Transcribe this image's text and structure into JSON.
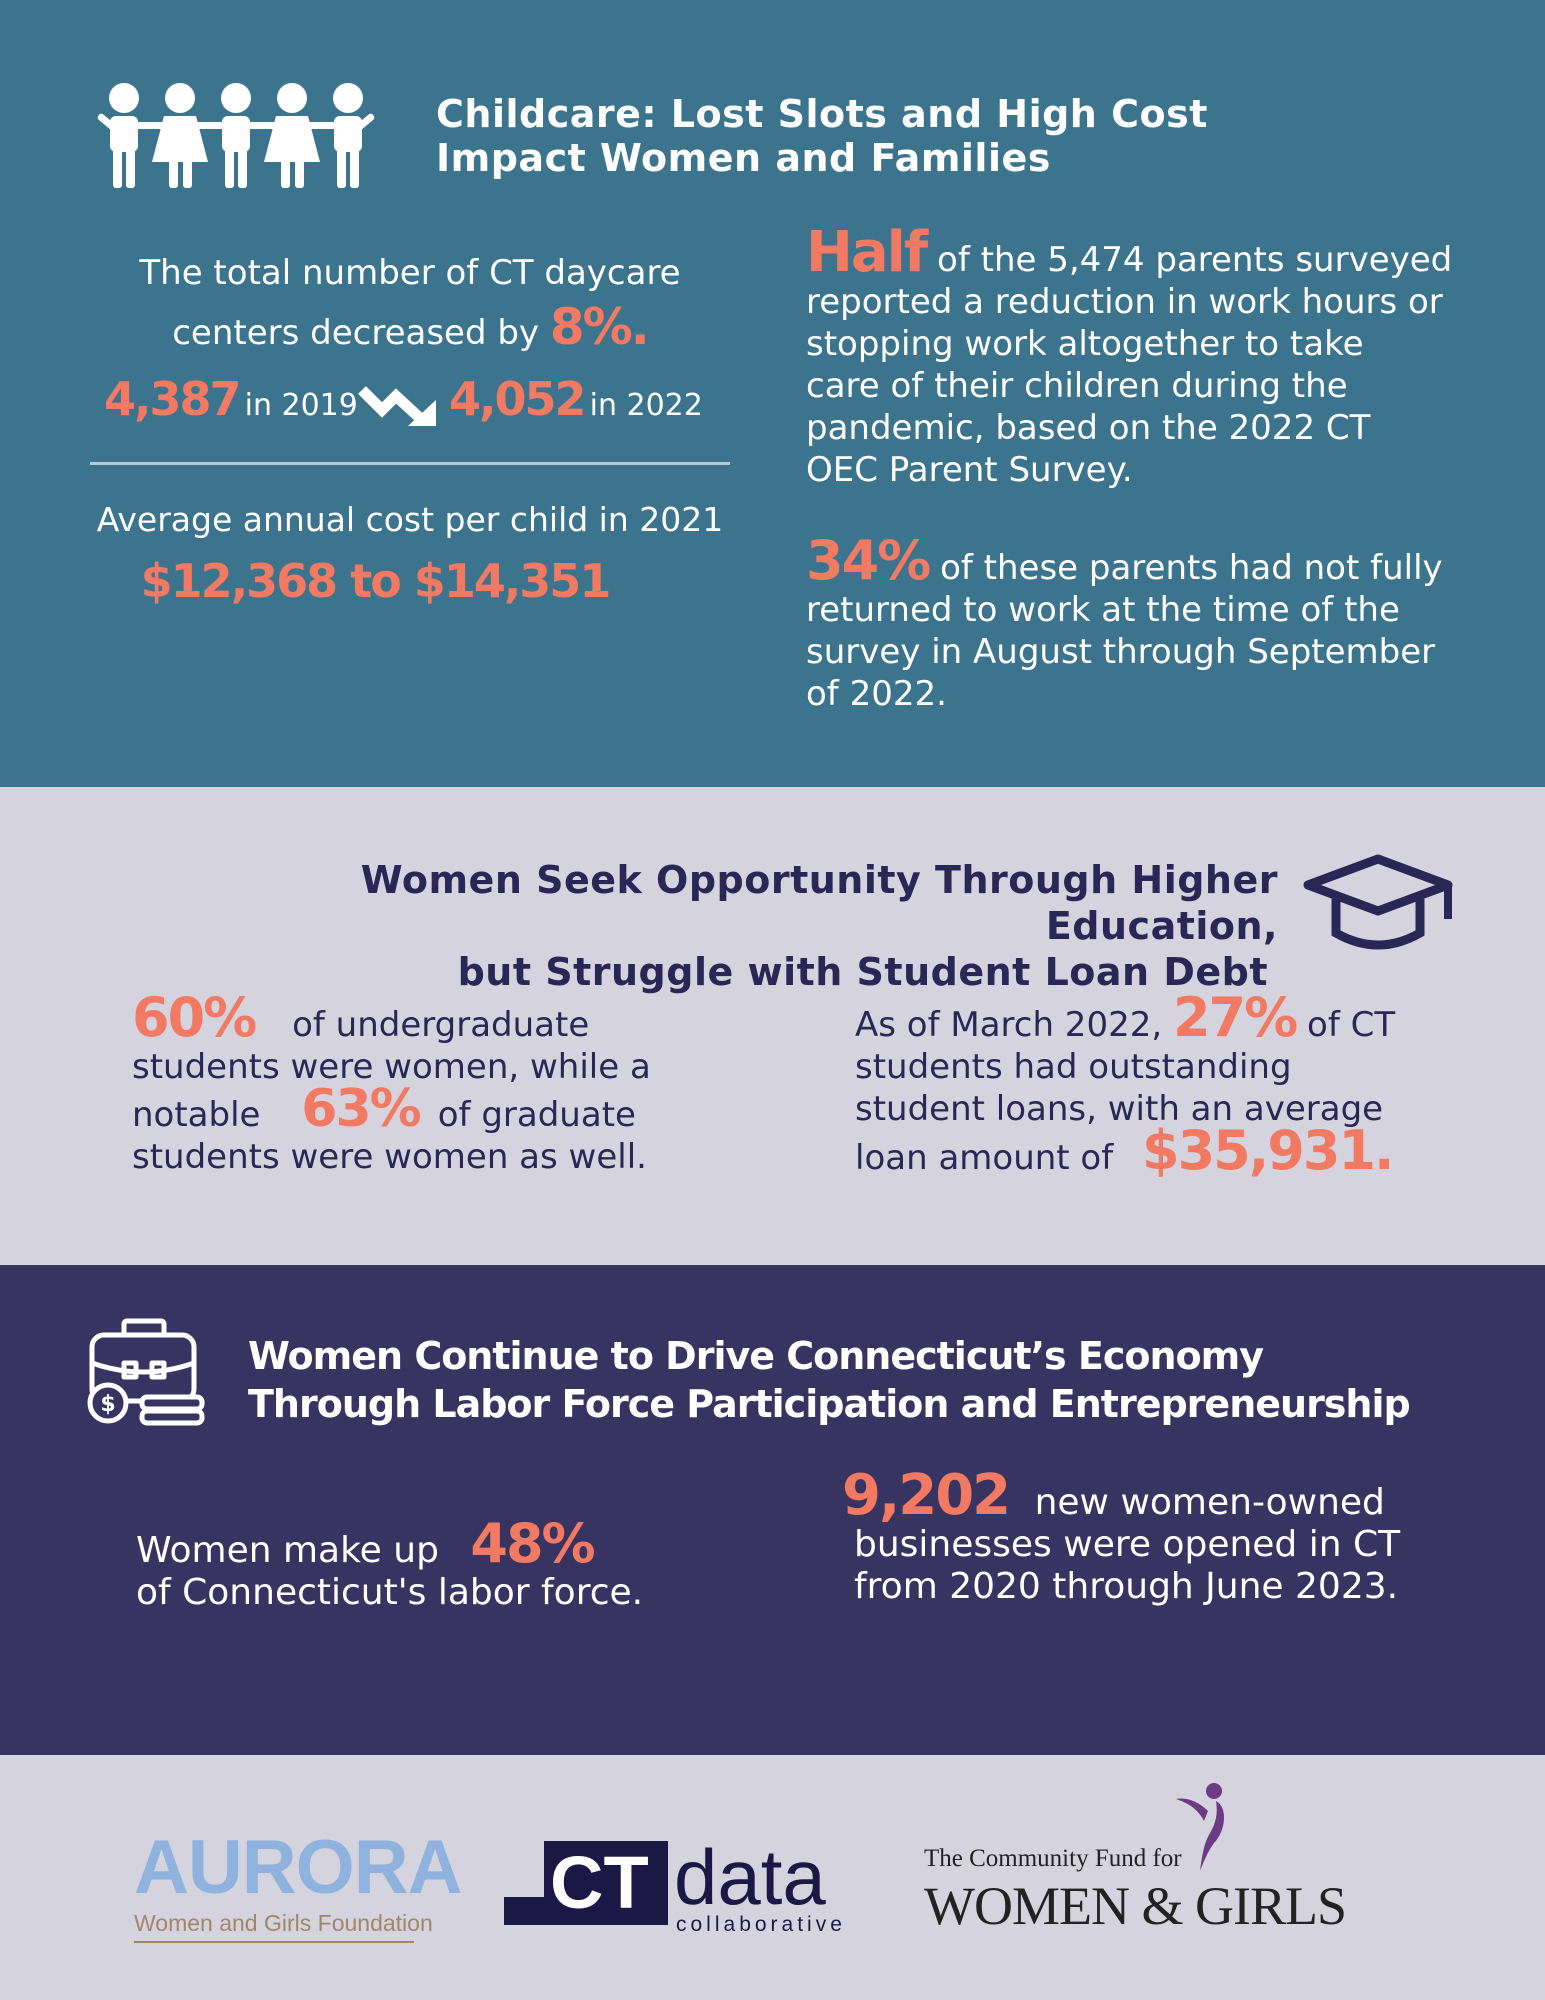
{
  "childcare": {
    "title_line1": "Childcare: Lost Slots and High Cost",
    "title_line2": "Impact Women and Families",
    "daycare_line1": "The total number of CT daycare",
    "daycare_line2": "centers decreased by",
    "daycare_pct": "8%.",
    "count_2019": "4,387",
    "label_2019": "in 2019",
    "count_2022": "4,052",
    "label_2022": "in 2022",
    "cost_label": "Average annual cost per child in 2021",
    "cost_range": "$12,368 to $14,351",
    "half_word": "Half",
    "half_line1": "of the 5,474 parents surveyed",
    "half_line2": "reported a reduction in work hours or",
    "half_line3": "stopping work altogether to take",
    "half_line4": "care of their children during the",
    "half_line5": "pandemic, based on the 2022 CT",
    "half_line6": "OEC Parent Survey.",
    "pct34": "34%",
    "p34_line1": "of these parents had not fully",
    "p34_line2": "returned to work at the time of the",
    "p34_line3": "survey in August through September",
    "p34_line4": "of 2022."
  },
  "education": {
    "title_line1": "Women Seek Opportunity Through Higher Education,",
    "title_line2": "but Struggle with Student Loan Debt",
    "pct60": "60%",
    "undergrad_line1": "of undergraduate",
    "undergrad_line2": "students were women, while a",
    "undergrad_line3a": "notable",
    "pct63": "63%",
    "undergrad_line3b": "of graduate",
    "undergrad_line4": "students were women as well.",
    "loan_line1a": "As of March 2022,",
    "pct27": "27%",
    "loan_line1b": "of CT",
    "loan_line2": "students had outstanding",
    "loan_line3": "student loans, with an average",
    "loan_line4": "loan amount of",
    "loan_amount": "$35,931."
  },
  "economy": {
    "title_line1": "Women Continue to Drive Connecticut’s Economy",
    "title_line2": "Through Labor Force Participation and Entrepreneurship",
    "labor_line1": "Women make up",
    "pct48": "48%",
    "labor_line2": "of Connecticut's labor force.",
    "businesses_count": "9,202",
    "biz_line1": "new women-owned",
    "biz_line2": "businesses were opened in CT",
    "biz_line3": "from 2020 through June 2023."
  },
  "footer": {
    "aurora_name": "AURORA",
    "aurora_sub": "Women and Girls Foundation",
    "ct_mark": "CT",
    "ct_data": "data",
    "ct_sub": "collaborative",
    "cfwg_top": "The Community Fund for",
    "cfwg_main": "WOMEN & GIRLS"
  },
  "colors": {
    "section1_bg": "#3c748d",
    "section2_bg": "#d5d4de",
    "section3_bg": "#383461",
    "accent": "#f27a62",
    "navy": "#2a2756"
  },
  "icons": [
    "people-icon",
    "arrow-down-icon",
    "graduation-cap-icon",
    "briefcase-money-icon",
    "figure-logo-icon"
  ]
}
